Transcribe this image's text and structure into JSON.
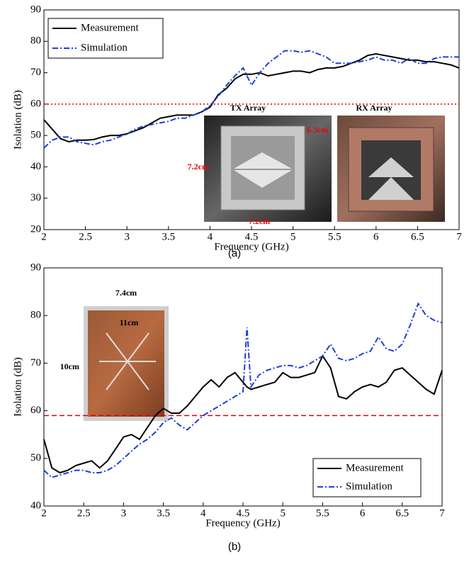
{
  "chart_data": [
    {
      "type": "line",
      "caption": "(a)",
      "x_label": "Frequency (GHz)",
      "y_label": "Isolation (dB)",
      "x": [
        2.0,
        2.1,
        2.2,
        2.3,
        2.4,
        2.5,
        2.6,
        2.7,
        2.8,
        2.9,
        3.0,
        3.1,
        3.2,
        3.3,
        3.4,
        3.5,
        3.6,
        3.7,
        3.8,
        3.9,
        4.0,
        4.1,
        4.2,
        4.3,
        4.4,
        4.5,
        4.6,
        4.7,
        4.8,
        4.9,
        5.0,
        5.1,
        5.2,
        5.3,
        5.4,
        5.5,
        5.6,
        5.7,
        5.8,
        5.9,
        6.0,
        6.1,
        6.2,
        6.3,
        6.4,
        6.5,
        6.6,
        6.7,
        6.8,
        6.9,
        7.0
      ],
      "series": [
        {
          "name": "Measurement",
          "color": "#000000",
          "style": "solid",
          "values": [
            55,
            52,
            49,
            48,
            48.5,
            48.5,
            48.7,
            49.5,
            50,
            50,
            50.5,
            51.5,
            52.5,
            54,
            55.5,
            56,
            56.5,
            56.5,
            56.5,
            57.5,
            59,
            63,
            65,
            68,
            69.5,
            69.5,
            70,
            69,
            69.5,
            70,
            70.5,
            70.5,
            70,
            71,
            71.5,
            71.5,
            72,
            73,
            74,
            75.5,
            76,
            75.5,
            75,
            74.5,
            74,
            74,
            73.5,
            73.5,
            73,
            72.5,
            71.5
          ]
        },
        {
          "name": "Simulation",
          "color": "#1f3fd8",
          "style": "dashdot",
          "values": [
            46,
            48.5,
            49.5,
            49.5,
            48,
            47.5,
            47,
            48,
            48.5,
            49.5,
            50.5,
            52,
            53,
            53.5,
            54,
            54.5,
            55.5,
            55.5,
            56.5,
            57.5,
            59.5,
            62.5,
            66,
            69,
            71.5,
            66,
            70,
            73,
            75,
            77,
            77,
            76.5,
            77,
            76,
            75,
            73,
            73,
            73,
            73.5,
            74,
            75,
            74,
            74,
            73,
            74.5,
            73,
            73,
            74.5,
            75,
            75,
            75
          ]
        }
      ],
      "hline": {
        "value": 60,
        "color": "#e00000",
        "style": "dotted"
      },
      "xlim": [
        2,
        7
      ],
      "xticks": [
        2,
        2.5,
        3,
        3.5,
        4,
        4.5,
        5,
        5.5,
        6,
        6.5,
        7
      ],
      "ylim": [
        20,
        90
      ],
      "yticks": [
        20,
        30,
        40,
        50,
        60,
        70,
        80,
        90
      ],
      "legend": "upper-left",
      "annotations": [
        "TX Array",
        "RX Array",
        "7.2cm",
        "6.3cm",
        "7.2cm"
      ]
    },
    {
      "type": "line",
      "caption": "(b)",
      "x_label": "Frequency (GHz)",
      "y_label": "Isolation (dB)",
      "x": [
        2.0,
        2.1,
        2.2,
        2.3,
        2.4,
        2.5,
        2.6,
        2.7,
        2.8,
        2.9,
        3.0,
        3.1,
        3.2,
        3.3,
        3.4,
        3.5,
        3.6,
        3.7,
        3.8,
        3.9,
        4.0,
        4.1,
        4.2,
        4.3,
        4.4,
        4.5,
        4.55,
        4.6,
        4.7,
        4.8,
        4.9,
        5.0,
        5.1,
        5.2,
        5.3,
        5.4,
        5.5,
        5.6,
        5.7,
        5.8,
        5.9,
        6.0,
        6.1,
        6.2,
        6.3,
        6.4,
        6.5,
        6.6,
        6.7,
        6.8,
        6.9,
        7.0
      ],
      "series": [
        {
          "name": "Measurement",
          "color": "#000000",
          "style": "solid",
          "values": [
            54,
            48,
            47,
            47.5,
            48.5,
            49,
            49.5,
            48,
            49.5,
            52,
            54.5,
            55,
            54,
            56.5,
            59,
            60.5,
            59.5,
            59.5,
            61,
            63,
            65,
            66.5,
            65,
            67,
            68,
            66,
            65,
            64.5,
            65,
            65.5,
            66,
            68,
            67,
            67,
            67.5,
            68,
            71.5,
            69,
            63,
            62.5,
            64,
            65,
            65.5,
            65,
            66,
            68.5,
            69,
            67.5,
            66,
            64.5,
            63.5,
            68.5
          ]
        },
        {
          "name": "Simulation",
          "color": "#1f3fd8",
          "style": "dashdot",
          "values": [
            47.5,
            46,
            46.5,
            47,
            47.5,
            47.5,
            47,
            47,
            47.5,
            48.5,
            50,
            51.5,
            53,
            54,
            55.5,
            57.5,
            58.5,
            57,
            56,
            57.5,
            59,
            60,
            61,
            62,
            63,
            64,
            77.5,
            65,
            67.5,
            68.5,
            69,
            69.5,
            69.5,
            69,
            69.5,
            70.5,
            71.5,
            74,
            71,
            70.5,
            71,
            72,
            72.5,
            75.5,
            73,
            72.5,
            74,
            78,
            82.5,
            80,
            79,
            78.5
          ]
        }
      ],
      "hline": {
        "value": 59,
        "color": "#e00000",
        "style": "dashed"
      },
      "xlim": [
        2,
        7
      ],
      "xticks": [
        2,
        2.5,
        3,
        3.5,
        4,
        4.5,
        5,
        5.5,
        6,
        6.5,
        7
      ],
      "ylim": [
        40,
        90
      ],
      "yticks": [
        40,
        50,
        60,
        70,
        80,
        90
      ],
      "legend": "lower-right",
      "annotations": [
        "7.4cm",
        "11cm",
        "10cm"
      ]
    }
  ]
}
